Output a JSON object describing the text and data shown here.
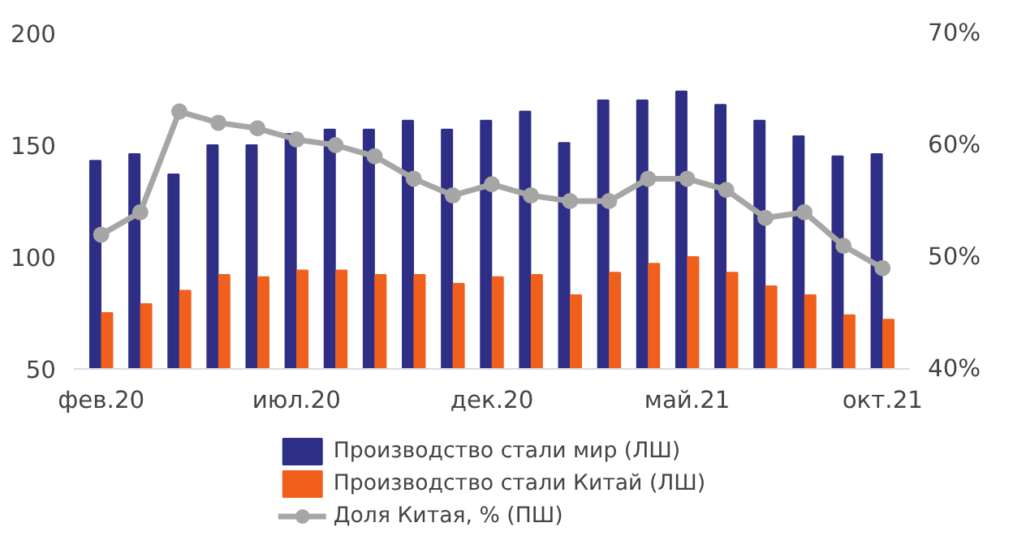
{
  "chart_data": {
    "type": "bar",
    "categories": [
      "фев.20",
      null,
      null,
      null,
      null,
      "июл.20",
      null,
      null,
      null,
      null,
      "дек.20",
      null,
      null,
      null,
      null,
      "май.21",
      null,
      null,
      null,
      null,
      "окт.21"
    ],
    "series": [
      {
        "name": "Производство стали мир (ЛШ)",
        "color": "#2e2e86",
        "values": [
          143,
          146,
          137,
          150,
          150,
          155,
          157,
          157,
          161,
          157,
          161,
          165,
          151,
          170,
          170,
          174,
          168,
          161,
          154,
          145,
          146
        ]
      },
      {
        "name": "Производство стали Китай (ЛШ)",
        "color": "#f0601c",
        "values": [
          75,
          79,
          85,
          92,
          91,
          94,
          94,
          92,
          92,
          88,
          91,
          92,
          83,
          93,
          97,
          100,
          93,
          87,
          83,
          74,
          72
        ]
      },
      {
        "name": "Доля Китая, % (ПШ)",
        "type": "line",
        "axis": "y2",
        "color": "#a6a6a6",
        "marker": "circle",
        "values": [
          52,
          54,
          63,
          62,
          61.5,
          60.5,
          60,
          59,
          57,
          55.5,
          56.5,
          55.5,
          55,
          55,
          57,
          57,
          56,
          53.5,
          54,
          51,
          49
        ]
      }
    ],
    "ylim": [
      50,
      200
    ],
    "yticks": [
      50,
      100,
      150,
      200
    ],
    "y2lim": [
      40,
      70
    ],
    "y2ticks": [
      {
        "value": 40,
        "label": "40%"
      },
      {
        "value": 50,
        "label": "50%"
      },
      {
        "value": 60,
        "label": "60%"
      },
      {
        "value": 70,
        "label": "70%"
      }
    ],
    "grid": false,
    "legend": "bottom"
  }
}
